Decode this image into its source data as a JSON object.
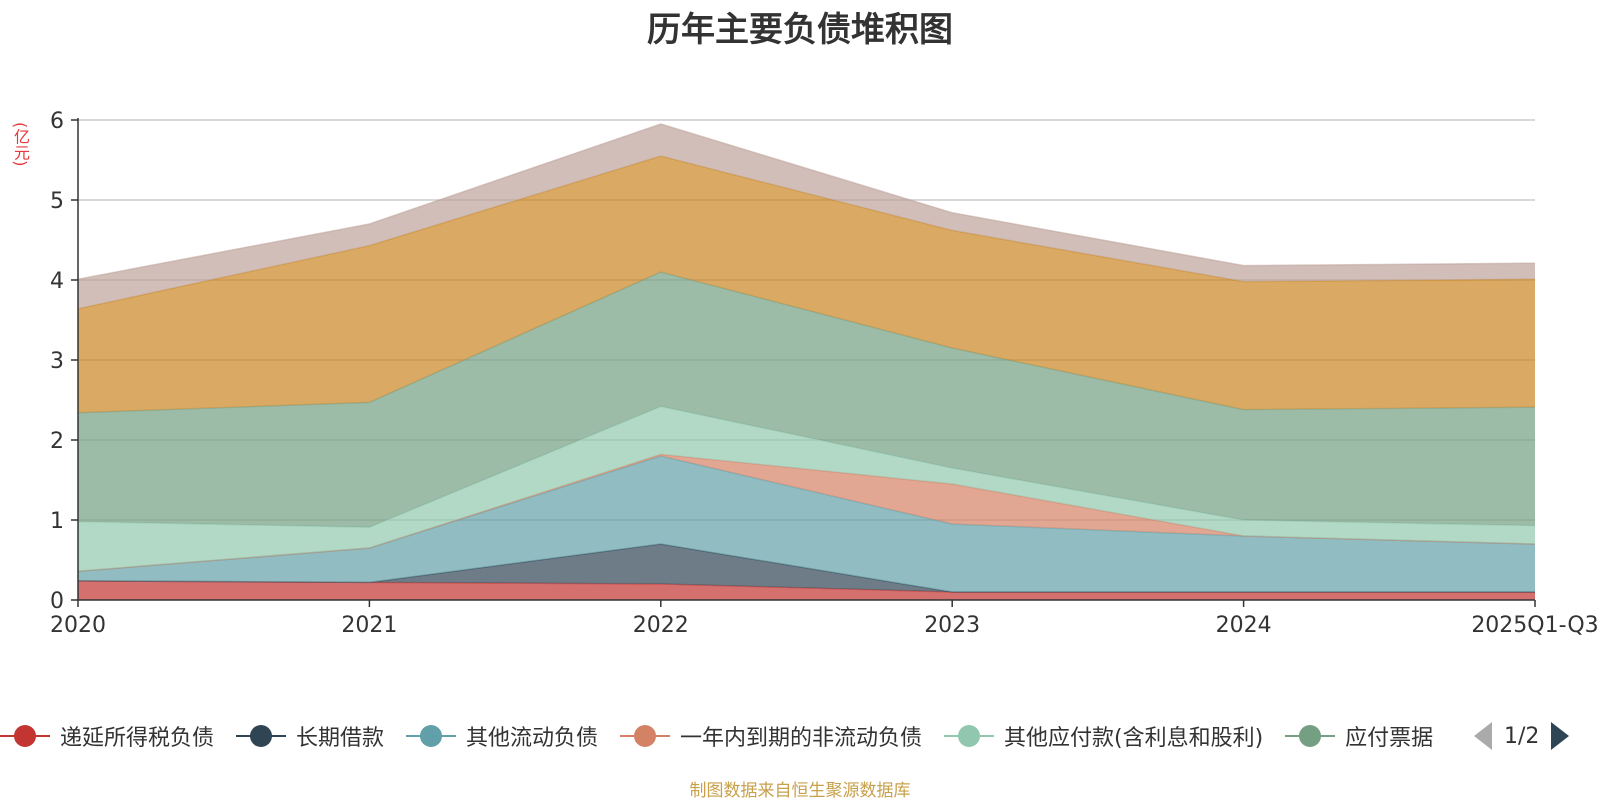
{
  "chart_data": {
    "type": "area",
    "stacked": true,
    "title": "历年主要负债堆积图",
    "y_unit": "(亿元)",
    "categories": [
      "2020",
      "2021",
      "2022",
      "2023",
      "2024",
      "2025Q1-Q3"
    ],
    "ylim": [
      0,
      6
    ],
    "yticks": [
      0,
      1,
      2,
      3,
      4,
      5,
      6
    ],
    "grid": true,
    "legend_position": "bottom",
    "legend_page": "1/2",
    "series": [
      {
        "name": "递延所得税负债",
        "color": "#c23531",
        "values": [
          0.24,
          0.22,
          0.2,
          0.1,
          0.1,
          0.1
        ]
      },
      {
        "name": "长期借款",
        "color": "#2f4554",
        "values": [
          0.0,
          0.0,
          0.5,
          0.0,
          0.0,
          0.0
        ]
      },
      {
        "name": "其他流动负债",
        "color": "#61a0a8",
        "values": [
          0.12,
          0.43,
          1.1,
          0.85,
          0.7,
          0.6
        ]
      },
      {
        "name": "一年内到期的非流动负债",
        "color": "#d48265",
        "values": [
          0.0,
          0.0,
          0.02,
          0.5,
          0.0,
          0.0
        ]
      },
      {
        "name": "其他应付款(含利息和股利)",
        "color": "#91c7ae",
        "values": [
          0.62,
          0.26,
          0.6,
          0.2,
          0.2,
          0.23
        ]
      },
      {
        "name": "应付票据",
        "color": "#749f83",
        "values": [
          1.36,
          1.56,
          1.68,
          1.5,
          1.38,
          1.48
        ]
      },
      {
        "name": "",
        "color": "#ca8622",
        "values": [
          1.3,
          1.96,
          1.45,
          1.47,
          1.6,
          1.6
        ]
      },
      {
        "name": "",
        "color": "#bda29a",
        "values": [
          0.37,
          0.27,
          0.4,
          0.22,
          0.2,
          0.2
        ]
      }
    ]
  },
  "source_note": "制图数据来自恒生聚源数据库"
}
